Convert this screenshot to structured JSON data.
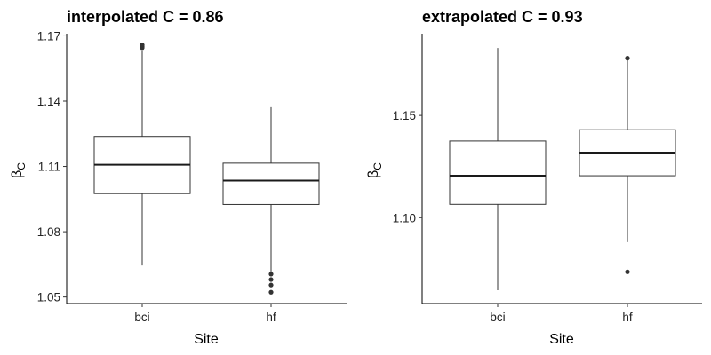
{
  "chart_data": [
    {
      "type": "boxplot",
      "title": "interpolated C = 0.86",
      "xlabel": "Site",
      "ylabel": "βC",
      "ylabel_main": "β",
      "ylabel_sub": "C",
      "ylim": [
        1.047,
        1.171
      ],
      "yticks": [
        1.05,
        1.08,
        1.11,
        1.14,
        1.17
      ],
      "ytick_labels": [
        "1.05",
        "1.08",
        "1.11",
        "1.14",
        "1.17"
      ],
      "categories": [
        "bci",
        "hf"
      ],
      "boxes": [
        {
          "category": "bci",
          "whisker_low": 1.0645,
          "q1": 1.0975,
          "median": 1.1108,
          "q3": 1.1238,
          "whisker_high": 1.163,
          "outliers": [
            1.1645,
            1.1652,
            1.1658
          ]
        },
        {
          "category": "hf",
          "whisker_low": 1.0612,
          "q1": 1.0925,
          "median": 1.1035,
          "q3": 1.1115,
          "whisker_high": 1.1372,
          "outliers": [
            1.0522,
            1.0555,
            1.058,
            1.0605
          ]
        }
      ],
      "grid": false
    },
    {
      "type": "boxplot",
      "title": "extrapolated C = 0.93",
      "xlabel": "Site",
      "ylabel": "βC",
      "ylabel_main": "β",
      "ylabel_sub": "C",
      "ylim": [
        1.058,
        1.19
      ],
      "yticks": [
        1.1,
        1.15
      ],
      "ytick_labels": [
        "1.10",
        "1.15"
      ],
      "categories": [
        "bci",
        "hf"
      ],
      "boxes": [
        {
          "category": "bci",
          "whisker_low": 1.0645,
          "q1": 1.1065,
          "median": 1.1205,
          "q3": 1.1375,
          "whisker_high": 1.183,
          "outliers": []
        },
        {
          "category": "hf",
          "whisker_low": 1.088,
          "q1": 1.1205,
          "median": 1.1318,
          "q3": 1.143,
          "whisker_high": 1.1775,
          "outliers": [
            1.0735,
            1.178
          ]
        }
      ],
      "grid": false
    }
  ]
}
